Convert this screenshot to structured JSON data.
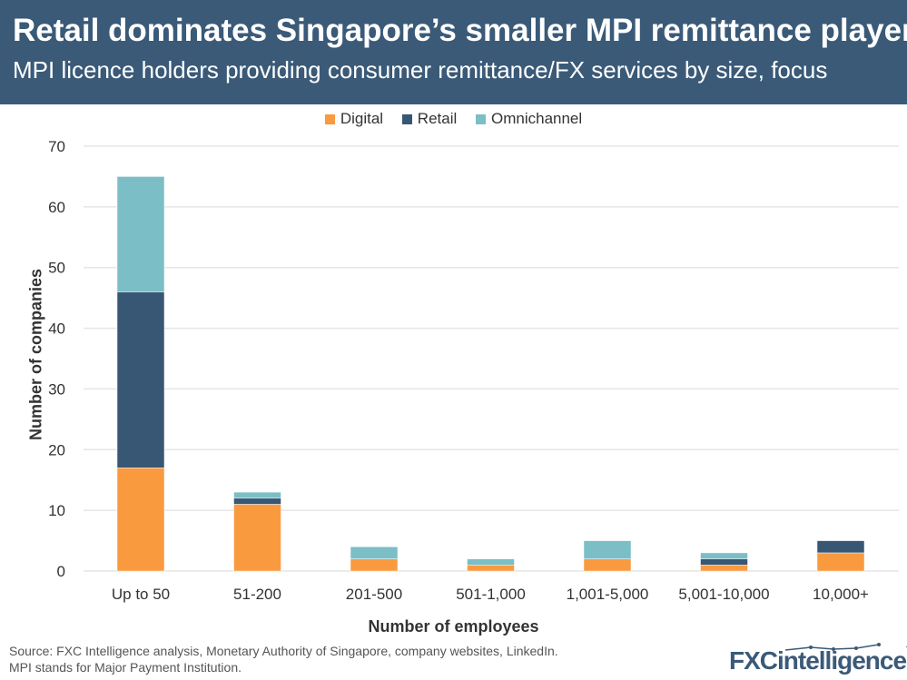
{
  "header": {
    "title": "Retail dominates Singapore’s smaller MPI remittance players",
    "subtitle": "MPI licence holders providing consumer remittance/FX services by size, focus"
  },
  "footer": {
    "source_line1": "Source: FXC Intelligence analysis, Monetary Authority of Singapore, company websites, LinkedIn.",
    "source_line2": "MPI stands for Major Payment Institution.",
    "logo": "FXCintelligence"
  },
  "chart_data": {
    "type": "bar",
    "stacked": true,
    "xlabel": "Number of employees",
    "ylabel": "Number of companies",
    "ylim": [
      0,
      70
    ],
    "yticks": [
      0,
      10,
      20,
      30,
      40,
      50,
      60,
      70
    ],
    "grid": true,
    "legend_position": "top",
    "categories": [
      "Up to 50",
      "51-200",
      "201-500",
      "501-1,000",
      "1,001-5,000",
      "5,001-10,000",
      "10,000+"
    ],
    "series": [
      {
        "name": "Digital",
        "color": "#f99a3f",
        "values": [
          17,
          11,
          2,
          1,
          2,
          1,
          3
        ]
      },
      {
        "name": "Retail",
        "color": "#385775",
        "values": [
          29,
          1,
          0,
          0,
          0,
          1,
          2
        ]
      },
      {
        "name": "Omnichannel",
        "color": "#7bbec6",
        "values": [
          19,
          1,
          2,
          1,
          3,
          1,
          0
        ]
      }
    ]
  }
}
